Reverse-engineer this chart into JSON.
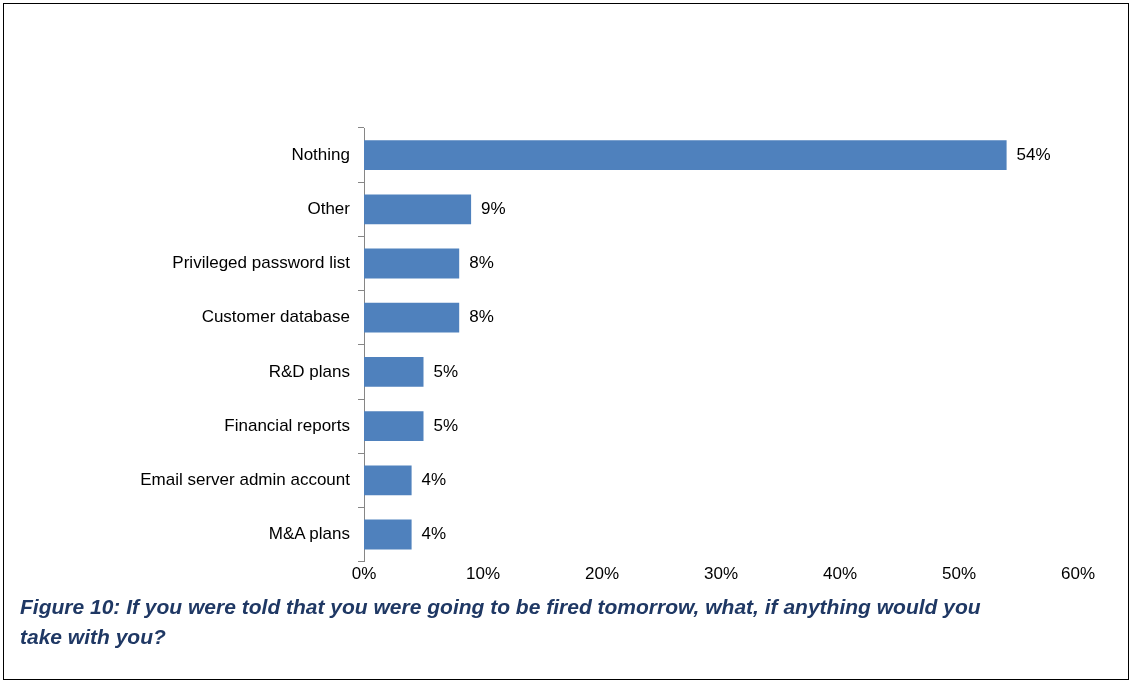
{
  "chart_data": {
    "type": "bar",
    "orientation": "horizontal",
    "title": "Figure 10: If you were told that you were going to be fired tomorrow, what, if anything would you take with you?",
    "categories": [
      "Nothing",
      "Other",
      "Privileged password list",
      "Customer database",
      "R&D plans",
      "Financial reports",
      "Email server admin account",
      "M&A plans"
    ],
    "values": [
      54,
      9,
      8,
      8,
      5,
      5,
      4,
      4
    ],
    "value_labels": [
      "54%",
      "9%",
      "8%",
      "8%",
      "5%",
      "5%",
      "4%",
      "4%"
    ],
    "color": "#4f81bd",
    "xlim": [
      0,
      60
    ],
    "xticks": [
      {
        "value": 0,
        "label": "0%"
      },
      {
        "value": 10,
        "label": "10%"
      },
      {
        "value": 20,
        "label": "20%"
      },
      {
        "value": 30,
        "label": "30%"
      },
      {
        "value": 40,
        "label": "40%"
      },
      {
        "value": 50,
        "label": "50%"
      },
      {
        "value": 60,
        "label": "60%"
      }
    ],
    "grid": false,
    "legend": false
  }
}
